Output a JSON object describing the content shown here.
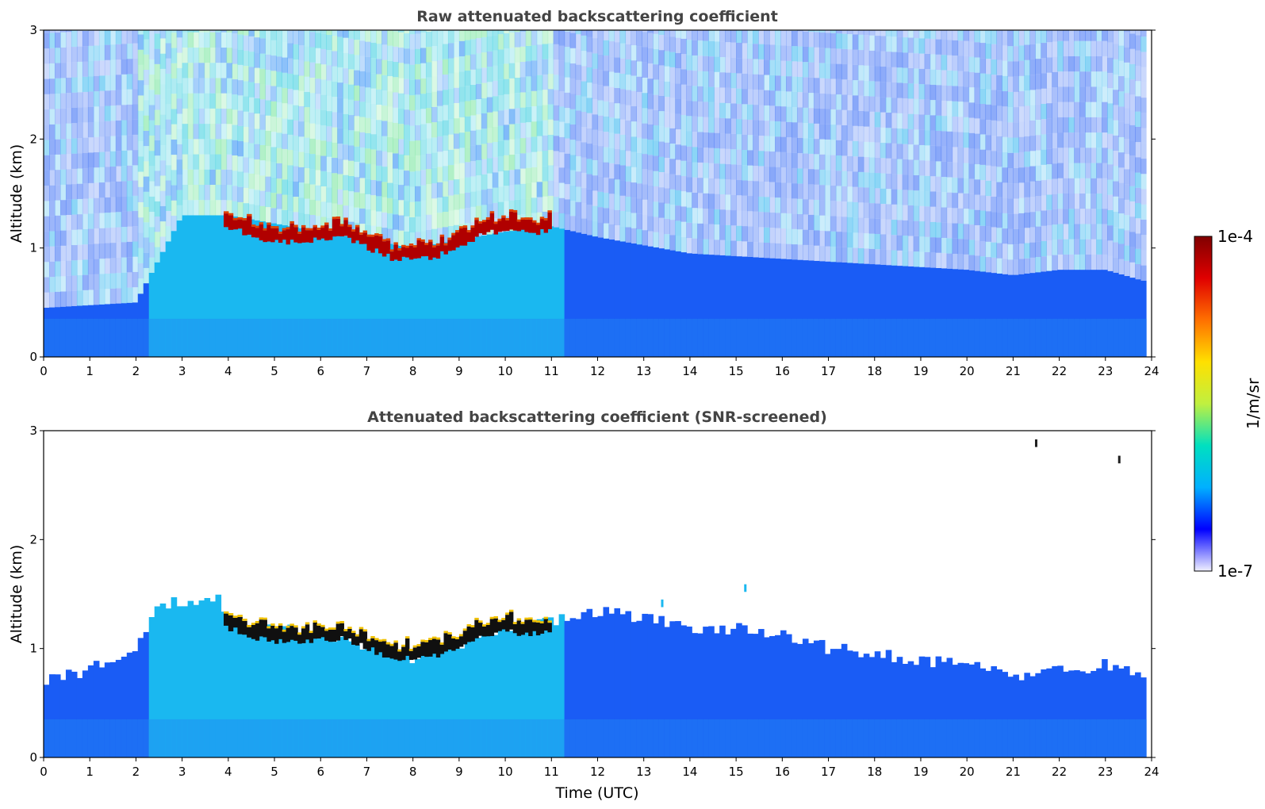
{
  "chart_data": [
    {
      "type": "heatmap",
      "title": "Raw attenuated backscattering coefficient",
      "xlabel": "",
      "ylabel": "Altitude (km)",
      "xlim": [
        0,
        24
      ],
      "ylim": [
        0,
        3
      ],
      "xticks": [
        "0",
        "1",
        "2",
        "3",
        "4",
        "5",
        "6",
        "7",
        "8",
        "9",
        "10",
        "11",
        "12",
        "13",
        "14",
        "15",
        "16",
        "17",
        "18",
        "19",
        "20",
        "21",
        "22",
        "23",
        "24"
      ],
      "yticks": [
        "0",
        "1",
        "2",
        "3"
      ],
      "data_end_hour": 23.8,
      "cloud_layer": {
        "time": [
          3.9,
          4.5,
          5.0,
          5.5,
          6.0,
          6.5,
          7.0,
          7.5,
          8.0,
          8.5,
          9.0,
          9.5,
          10.0,
          10.5,
          11.0
        ],
        "altitude_km": [
          1.22,
          1.12,
          1.08,
          1.07,
          1.1,
          1.11,
          1.02,
          0.93,
          0.92,
          0.95,
          1.05,
          1.15,
          1.18,
          1.15,
          1.2
        ]
      },
      "boundary_layer_top_km": {
        "time": [
          0,
          2,
          3,
          4,
          6,
          8,
          10,
          11,
          12,
          14,
          16,
          18,
          20,
          21,
          22,
          23,
          23.8
        ],
        "altitude_km": [
          0.45,
          0.5,
          1.3,
          1.3,
          1.15,
          1.0,
          1.15,
          1.2,
          1.1,
          0.95,
          0.9,
          0.85,
          0.8,
          0.75,
          0.8,
          0.8,
          0.7
        ]
      },
      "noise_enhanced_period": [
        2.0,
        11.0
      ]
    },
    {
      "type": "heatmap",
      "title": "Attenuated backscattering coefficient (SNR-screened)",
      "xlabel": "Time (UTC)",
      "ylabel": "Altitude (km)",
      "xlim": [
        0,
        24
      ],
      "ylim": [
        0,
        3
      ],
      "xticks": [
        "0",
        "1",
        "2",
        "3",
        "4",
        "5",
        "6",
        "7",
        "8",
        "9",
        "10",
        "11",
        "12",
        "13",
        "14",
        "15",
        "16",
        "17",
        "18",
        "19",
        "20",
        "21",
        "22",
        "23",
        "24"
      ],
      "yticks": [
        "0",
        "1",
        "2",
        "3"
      ],
      "data_end_hour": 23.8,
      "cloud_layer": {
        "time": [
          3.9,
          4.5,
          5.0,
          5.5,
          6.0,
          6.5,
          7.0,
          7.5,
          8.0,
          8.5,
          9.0,
          9.5,
          10.0,
          10.5,
          11.0
        ],
        "altitude_km": [
          1.22,
          1.12,
          1.08,
          1.07,
          1.1,
          1.11,
          1.02,
          0.93,
          0.92,
          0.95,
          1.05,
          1.15,
          1.18,
          1.15,
          1.2
        ]
      },
      "screened_signal_top_km": {
        "time": [
          0,
          1,
          2,
          2.5,
          3.8,
          4,
          6,
          8,
          10,
          11,
          12,
          14,
          16,
          17,
          18,
          20,
          21,
          22,
          23,
          23.8
        ],
        "altitude_km": [
          0.72,
          0.8,
          1.0,
          1.4,
          1.45,
          1.2,
          1.15,
          0.9,
          1.2,
          1.25,
          1.35,
          1.2,
          1.15,
          1.0,
          0.95,
          0.85,
          0.75,
          0.8,
          0.85,
          0.75
        ]
      },
      "isolated_features": [
        {
          "time": 13.4,
          "altitude_km": 1.38
        },
        {
          "time": 15.2,
          "altitude_km": 1.52
        },
        {
          "time": 21.5,
          "altitude_km": 2.85
        },
        {
          "time": 23.3,
          "altitude_km": 2.7
        }
      ]
    }
  ],
  "colorbar": {
    "max_label": "1e-4",
    "min_label": "1e-7",
    "unit_label": "1/m/sr",
    "colormap": [
      "#f0f0ff",
      "#0000ff",
      "#00b0ff",
      "#00e0c0",
      "#c0f040",
      "#ffe000",
      "#ff7000",
      "#e00000",
      "#800000"
    ]
  }
}
